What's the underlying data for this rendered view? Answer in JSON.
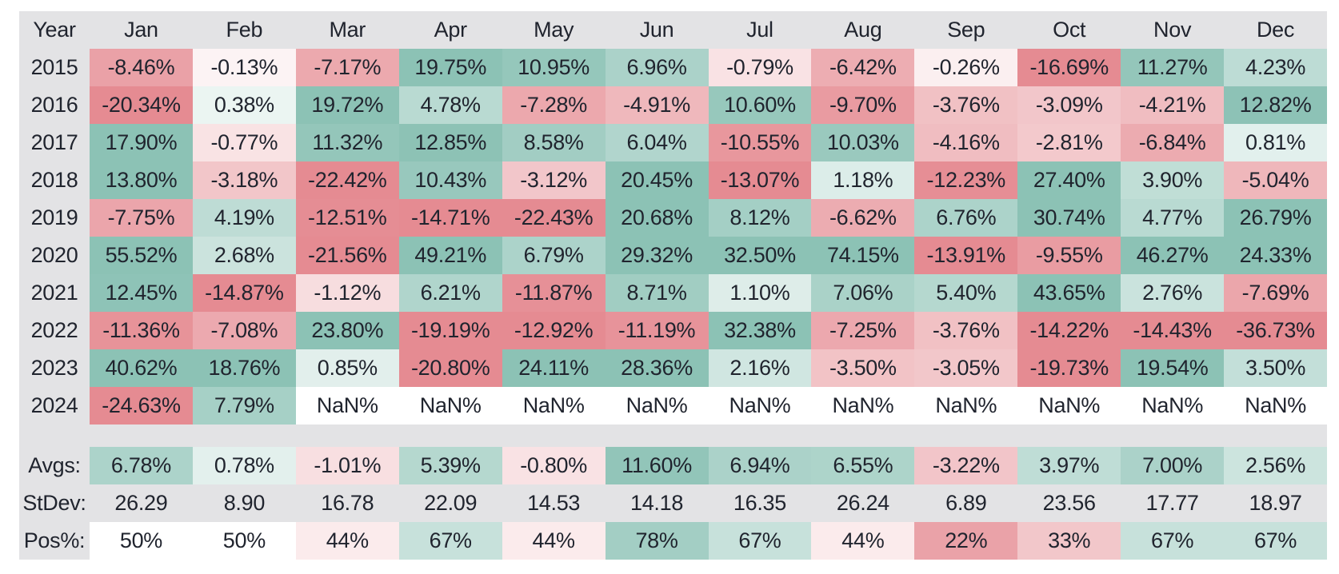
{
  "chart_data": {
    "type": "heatmap",
    "columns": [
      "Year",
      "Jan",
      "Feb",
      "Mar",
      "Apr",
      "May",
      "Jun",
      "Jul",
      "Aug",
      "Sep",
      "Oct",
      "Nov",
      "Dec"
    ],
    "nan_display": "NaN%",
    "rows": [
      {
        "label": "2015",
        "values": [
          -8.46,
          -0.13,
          -7.17,
          19.75,
          10.95,
          6.96,
          -0.79,
          -6.42,
          -0.26,
          -16.69,
          11.27,
          4.23
        ]
      },
      {
        "label": "2016",
        "values": [
          -20.34,
          0.38,
          19.72,
          4.78,
          -7.28,
          -4.91,
          10.6,
          -9.7,
          -3.76,
          -3.09,
          -4.21,
          12.82
        ]
      },
      {
        "label": "2017",
        "values": [
          17.9,
          -0.77,
          11.32,
          12.85,
          8.58,
          6.04,
          -10.55,
          10.03,
          -4.16,
          -2.81,
          -6.84,
          0.81
        ]
      },
      {
        "label": "2018",
        "values": [
          13.8,
          -3.18,
          -22.42,
          10.43,
          -3.12,
          20.45,
          -13.07,
          1.18,
          -12.23,
          27.4,
          3.9,
          -5.04
        ]
      },
      {
        "label": "2019",
        "values": [
          -7.75,
          4.19,
          -12.51,
          -14.71,
          -22.43,
          20.68,
          8.12,
          -6.62,
          6.76,
          30.74,
          4.77,
          26.79
        ]
      },
      {
        "label": "2020",
        "values": [
          55.52,
          2.68,
          -21.56,
          49.21,
          6.79,
          29.32,
          32.5,
          74.15,
          -13.91,
          -9.55,
          46.27,
          24.33
        ]
      },
      {
        "label": "2021",
        "values": [
          12.45,
          -14.87,
          -1.12,
          6.21,
          -11.87,
          8.71,
          1.1,
          7.06,
          5.4,
          43.65,
          2.76,
          -7.69
        ]
      },
      {
        "label": "2022",
        "values": [
          -11.36,
          -7.08,
          23.8,
          -19.19,
          -12.92,
          -11.19,
          32.38,
          -7.25,
          -3.76,
          -14.22,
          -14.43,
          -36.73
        ]
      },
      {
        "label": "2023",
        "values": [
          40.62,
          18.76,
          0.85,
          -20.8,
          24.11,
          28.36,
          2.16,
          -3.5,
          -3.05,
          -19.73,
          19.54,
          3.5
        ]
      },
      {
        "label": "2024",
        "values": [
          -24.63,
          7.79,
          null,
          null,
          null,
          null,
          null,
          null,
          null,
          null,
          null,
          null
        ]
      }
    ],
    "summary_rows": [
      {
        "label": "Avgs:",
        "format": "pct2",
        "scale": "value",
        "values": [
          6.78,
          0.78,
          -1.01,
          5.39,
          -0.8,
          11.6,
          6.94,
          6.55,
          -3.22,
          3.97,
          7.0,
          2.56
        ]
      },
      {
        "label": "StDev:",
        "format": "num2",
        "scale": "none",
        "values": [
          26.29,
          8.9,
          16.78,
          22.09,
          14.53,
          14.18,
          16.35,
          26.24,
          6.89,
          23.56,
          17.77,
          18.97
        ]
      },
      {
        "label": "Pos%:",
        "format": "pct0",
        "scale": "pos",
        "values": [
          50,
          50,
          44,
          67,
          44,
          78,
          67,
          44,
          22,
          33,
          67,
          67
        ]
      }
    ]
  },
  "colors": {
    "page_background": "#ffffff",
    "table_background": "#e3e3e5",
    "text": "#20242e",
    "positive_max": "#8cc2b5",
    "negative_max": "#e58b92",
    "nan_cell": "#ffffff"
  }
}
